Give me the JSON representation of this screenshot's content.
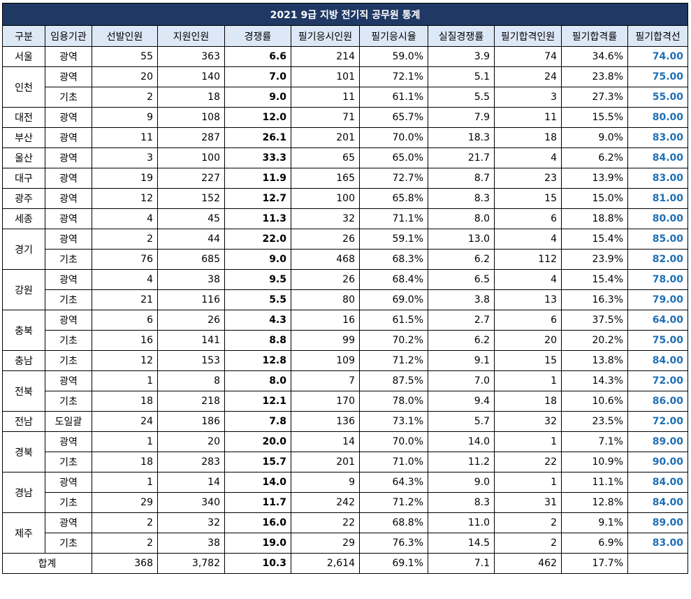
{
  "title": "2021 9급 지방 전기직 공무원 통계",
  "headers": [
    "구분",
    "임용기관",
    "선발인원",
    "지원인원",
    "경쟁률",
    "필기응시인원",
    "필기응시율",
    "실질경쟁률",
    "필기합격인원",
    "필기합격률",
    "필기합격선"
  ],
  "groups": [
    {
      "region": "서울",
      "rows": [
        [
          "광역",
          "55",
          "363",
          "6.6",
          "214",
          "59.0%",
          "3.9",
          "74",
          "34.6%",
          "74.00"
        ]
      ]
    },
    {
      "region": "인천",
      "rows": [
        [
          "광역",
          "20",
          "140",
          "7.0",
          "101",
          "72.1%",
          "5.1",
          "24",
          "23.8%",
          "75.00"
        ],
        [
          "기초",
          "2",
          "18",
          "9.0",
          "11",
          "61.1%",
          "5.5",
          "3",
          "27.3%",
          "55.00"
        ]
      ]
    },
    {
      "region": "대전",
      "rows": [
        [
          "광역",
          "9",
          "108",
          "12.0",
          "71",
          "65.7%",
          "7.9",
          "11",
          "15.5%",
          "80.00"
        ]
      ]
    },
    {
      "region": "부산",
      "rows": [
        [
          "광역",
          "11",
          "287",
          "26.1",
          "201",
          "70.0%",
          "18.3",
          "18",
          "9.0%",
          "83.00"
        ]
      ]
    },
    {
      "region": "울산",
      "rows": [
        [
          "광역",
          "3",
          "100",
          "33.3",
          "65",
          "65.0%",
          "21.7",
          "4",
          "6.2%",
          "84.00"
        ]
      ]
    },
    {
      "region": "대구",
      "rows": [
        [
          "광역",
          "19",
          "227",
          "11.9",
          "165",
          "72.7%",
          "8.7",
          "23",
          "13.9%",
          "83.00"
        ]
      ]
    },
    {
      "region": "광주",
      "rows": [
        [
          "광역",
          "12",
          "152",
          "12.7",
          "100",
          "65.8%",
          "8.3",
          "15",
          "15.0%",
          "81.00"
        ]
      ]
    },
    {
      "region": "세종",
      "rows": [
        [
          "광역",
          "4",
          "45",
          "11.3",
          "32",
          "71.1%",
          "8.0",
          "6",
          "18.8%",
          "80.00"
        ]
      ]
    },
    {
      "region": "경기",
      "rows": [
        [
          "광역",
          "2",
          "44",
          "22.0",
          "26",
          "59.1%",
          "13.0",
          "4",
          "15.4%",
          "85.00"
        ],
        [
          "기초",
          "76",
          "685",
          "9.0",
          "468",
          "68.3%",
          "6.2",
          "112",
          "23.9%",
          "82.00"
        ]
      ]
    },
    {
      "region": "강원",
      "rows": [
        [
          "광역",
          "4",
          "38",
          "9.5",
          "26",
          "68.4%",
          "6.5",
          "4",
          "15.4%",
          "78.00"
        ],
        [
          "기초",
          "21",
          "116",
          "5.5",
          "80",
          "69.0%",
          "3.8",
          "13",
          "16.3%",
          "79.00"
        ]
      ]
    },
    {
      "region": "충북",
      "rows": [
        [
          "광역",
          "6",
          "26",
          "4.3",
          "16",
          "61.5%",
          "2.7",
          "6",
          "37.5%",
          "64.00"
        ],
        [
          "기초",
          "16",
          "141",
          "8.8",
          "99",
          "70.2%",
          "6.2",
          "20",
          "20.2%",
          "75.00"
        ]
      ]
    },
    {
      "region": "충남",
      "rows": [
        [
          "기초",
          "12",
          "153",
          "12.8",
          "109",
          "71.2%",
          "9.1",
          "15",
          "13.8%",
          "84.00"
        ]
      ]
    },
    {
      "region": "전북",
      "rows": [
        [
          "광역",
          "1",
          "8",
          "8.0",
          "7",
          "87.5%",
          "7.0",
          "1",
          "14.3%",
          "72.00"
        ],
        [
          "기초",
          "18",
          "218",
          "12.1",
          "170",
          "78.0%",
          "9.4",
          "18",
          "10.6%",
          "86.00"
        ]
      ]
    },
    {
      "region": "전남",
      "rows": [
        [
          "도일괄",
          "24",
          "186",
          "7.8",
          "136",
          "73.1%",
          "5.7",
          "32",
          "23.5%",
          "72.00"
        ]
      ]
    },
    {
      "region": "경북",
      "rows": [
        [
          "광역",
          "1",
          "20",
          "20.0",
          "14",
          "70.0%",
          "14.0",
          "1",
          "7.1%",
          "89.00"
        ],
        [
          "기초",
          "18",
          "283",
          "15.7",
          "201",
          "71.0%",
          "11.2",
          "22",
          "10.9%",
          "90.00"
        ]
      ]
    },
    {
      "region": "경남",
      "rows": [
        [
          "광역",
          "1",
          "14",
          "14.0",
          "9",
          "64.3%",
          "9.0",
          "1",
          "11.1%",
          "84.00"
        ],
        [
          "기초",
          "29",
          "340",
          "11.7",
          "242",
          "71.2%",
          "8.3",
          "31",
          "12.8%",
          "84.00"
        ]
      ]
    },
    {
      "region": "제주",
      "rows": [
        [
          "광역",
          "2",
          "32",
          "16.0",
          "22",
          "68.8%",
          "11.0",
          "2",
          "9.1%",
          "89.00"
        ],
        [
          "기초",
          "2",
          "38",
          "19.0",
          "29",
          "76.3%",
          "14.5",
          "2",
          "6.9%",
          "83.00"
        ]
      ]
    }
  ],
  "total": {
    "label": "합계",
    "values": [
      "368",
      "3,782",
      "10.3",
      "2,614",
      "69.1%",
      "7.1",
      "462",
      "17.7%",
      ""
    ]
  },
  "colors": {
    "title_bg": "#1f3864",
    "header_bg": "#dde8f7",
    "cutoff_text": "#1f6fb5"
  }
}
